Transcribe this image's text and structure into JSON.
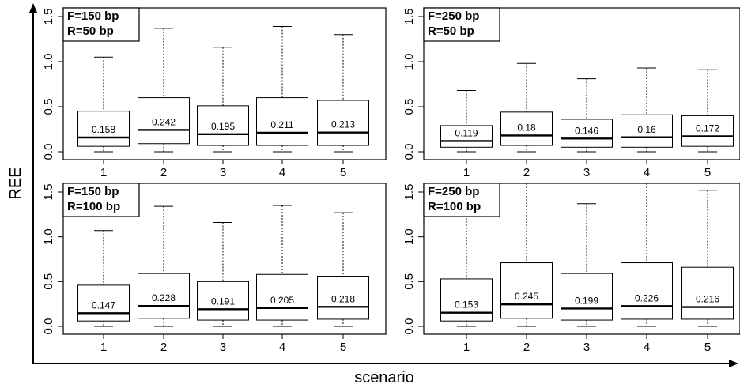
{
  "figure": {
    "ylabel": "REE",
    "xlabel": "scenario",
    "line_color": "#000000",
    "background": "#ffffff"
  },
  "chart_data": [
    {
      "type": "box",
      "legend": [
        "F=150 bp",
        "R=50 bp"
      ],
      "categories": [
        "1",
        "2",
        "3",
        "4",
        "5"
      ],
      "ylim": [
        0,
        1.55
      ],
      "yticks": [
        0.0,
        0.5,
        1.0,
        1.5
      ],
      "ytick_labels": [
        "0.0",
        "0.5",
        "1.0",
        "1.5"
      ],
      "boxes": [
        {
          "min": 0.0,
          "q1": 0.06,
          "median": 0.158,
          "q3": 0.45,
          "max": 1.05,
          "label": "0.158"
        },
        {
          "min": 0.0,
          "q1": 0.09,
          "median": 0.242,
          "q3": 0.6,
          "max": 1.37,
          "label": "0.242"
        },
        {
          "min": 0.0,
          "q1": 0.07,
          "median": 0.195,
          "q3": 0.51,
          "max": 1.16,
          "label": "0.195"
        },
        {
          "min": 0.0,
          "q1": 0.07,
          "median": 0.211,
          "q3": 0.6,
          "max": 1.39,
          "label": "0.211"
        },
        {
          "min": 0.0,
          "q1": 0.07,
          "median": 0.213,
          "q3": 0.57,
          "max": 1.3,
          "label": "0.213"
        }
      ]
    },
    {
      "type": "box",
      "legend": [
        "F=250 bp",
        "R=50 bp"
      ],
      "categories": [
        "1",
        "2",
        "3",
        "4",
        "5"
      ],
      "ylim": [
        0,
        1.55
      ],
      "yticks": [
        0.0,
        0.5,
        1.0,
        1.5
      ],
      "ytick_labels": [
        "0.0",
        "0.5",
        "1.0",
        "1.5"
      ],
      "boxes": [
        {
          "min": 0.0,
          "q1": 0.05,
          "median": 0.119,
          "q3": 0.29,
          "max": 0.68,
          "label": "0.119"
        },
        {
          "min": 0.0,
          "q1": 0.07,
          "median": 0.18,
          "q3": 0.44,
          "max": 0.98,
          "label": "0.18"
        },
        {
          "min": 0.0,
          "q1": 0.05,
          "median": 0.146,
          "q3": 0.36,
          "max": 0.81,
          "label": "0.146"
        },
        {
          "min": 0.0,
          "q1": 0.05,
          "median": 0.16,
          "q3": 0.41,
          "max": 0.93,
          "label": "0.16"
        },
        {
          "min": 0.0,
          "q1": 0.06,
          "median": 0.172,
          "q3": 0.4,
          "max": 0.91,
          "label": "0.172"
        }
      ]
    },
    {
      "type": "box",
      "legend": [
        "F=150 bp",
        "R=100 bp"
      ],
      "categories": [
        "1",
        "2",
        "3",
        "4",
        "5"
      ],
      "ylim": [
        0,
        1.55
      ],
      "yticks": [
        0.0,
        0.5,
        1.0,
        1.5
      ],
      "ytick_labels": [
        "0.0",
        "0.5",
        "1.0",
        "1.5"
      ],
      "boxes": [
        {
          "min": 0.0,
          "q1": 0.06,
          "median": 0.147,
          "q3": 0.46,
          "max": 1.07,
          "label": "0.147"
        },
        {
          "min": 0.0,
          "q1": 0.09,
          "median": 0.228,
          "q3": 0.59,
          "max": 1.34,
          "label": "0.228"
        },
        {
          "min": 0.0,
          "q1": 0.07,
          "median": 0.191,
          "q3": 0.5,
          "max": 1.16,
          "label": "0.191"
        },
        {
          "min": 0.0,
          "q1": 0.07,
          "median": 0.205,
          "q3": 0.58,
          "max": 1.35,
          "label": "0.205"
        },
        {
          "min": 0.0,
          "q1": 0.08,
          "median": 0.218,
          "q3": 0.56,
          "max": 1.27,
          "label": "0.218"
        }
      ]
    },
    {
      "type": "box",
      "legend": [
        "F=250 bp",
        "R=100 bp"
      ],
      "categories": [
        "1",
        "2",
        "3",
        "4",
        "5"
      ],
      "ylim": [
        0,
        1.55
      ],
      "yticks": [
        0.0,
        0.5,
        1.0,
        1.5
      ],
      "ytick_labels": [
        "0.0",
        "0.5",
        "1.0",
        "1.5"
      ],
      "boxes": [
        {
          "min": 0.0,
          "q1": 0.06,
          "median": 0.153,
          "q3": 0.53,
          "max": 1.28,
          "label": "0.153"
        },
        {
          "min": 0.0,
          "q1": 0.09,
          "median": 0.245,
          "q3": 0.71,
          "max": 1.6,
          "label": "0.245"
        },
        {
          "min": 0.0,
          "q1": 0.07,
          "median": 0.199,
          "q3": 0.59,
          "max": 1.37,
          "label": "0.199"
        },
        {
          "min": 0.0,
          "q1": 0.08,
          "median": 0.226,
          "q3": 0.71,
          "max": 1.6,
          "label": "0.226"
        },
        {
          "min": 0.0,
          "q1": 0.08,
          "median": 0.216,
          "q3": 0.66,
          "max": 1.52,
          "label": "0.216"
        }
      ]
    }
  ]
}
